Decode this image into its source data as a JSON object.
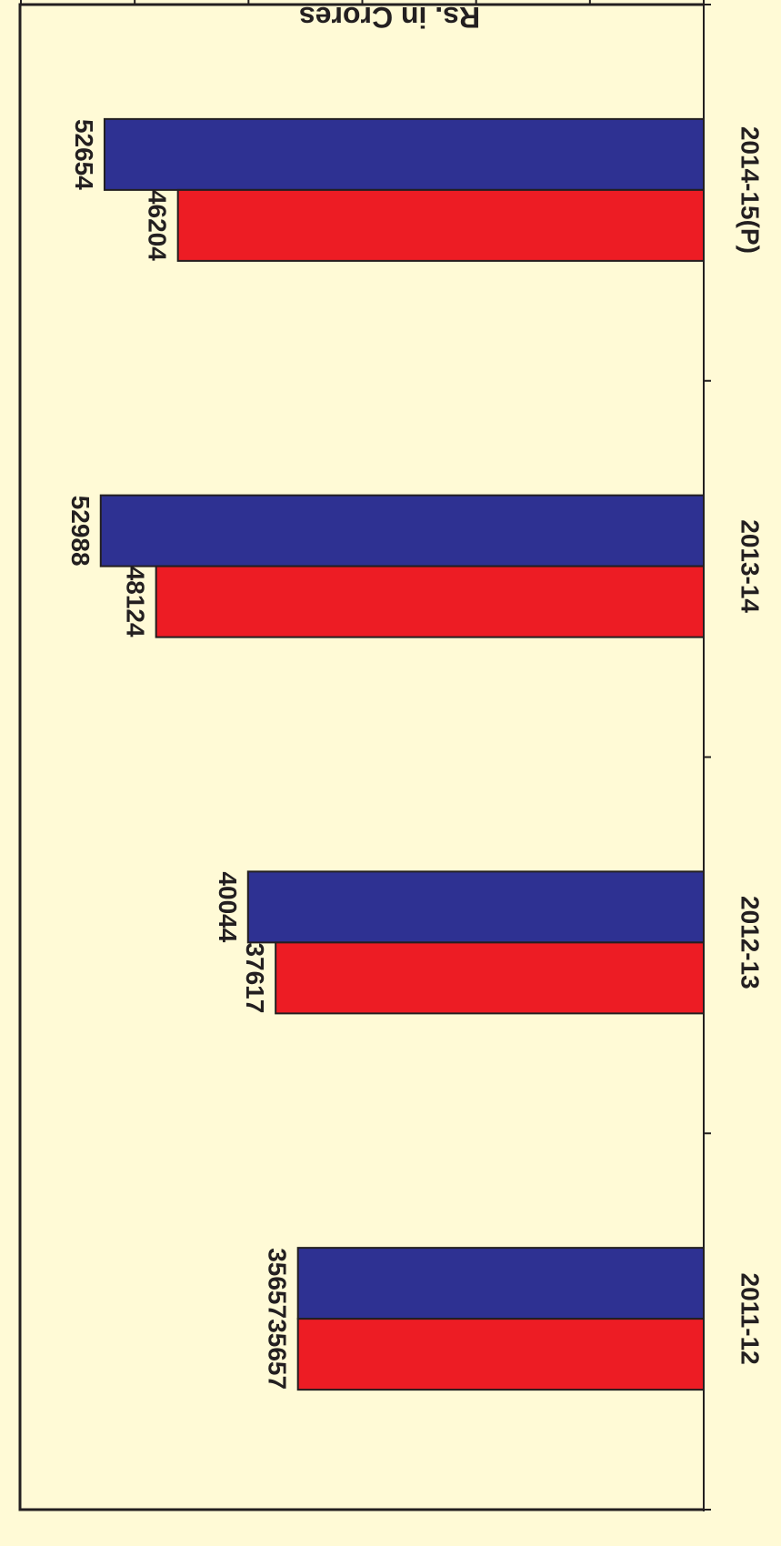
{
  "chart_data": {
    "type": "bar",
    "orientation": "rotated-180",
    "ylabel": "Rs. in Crores",
    "ylim": [
      0,
      60000
    ],
    "yticks": [
      "0",
      "10000",
      "20000",
      "30000",
      "40000",
      "50000",
      "60000"
    ],
    "categories": [
      "2011-12",
      "2012-13",
      "2013-14",
      "2014-15(P)"
    ],
    "series": [
      {
        "values": [
          35657,
          40044,
          52988,
          52654
        ],
        "color": "#2e3192"
      },
      {
        "values": [
          35657,
          37617,
          48124,
          46204
        ],
        "color": "#ed1c24"
      }
    ],
    "grid": false,
    "legend": "none"
  },
  "style": {
    "background": "#fffad6",
    "plot_border": "#231f20"
  }
}
